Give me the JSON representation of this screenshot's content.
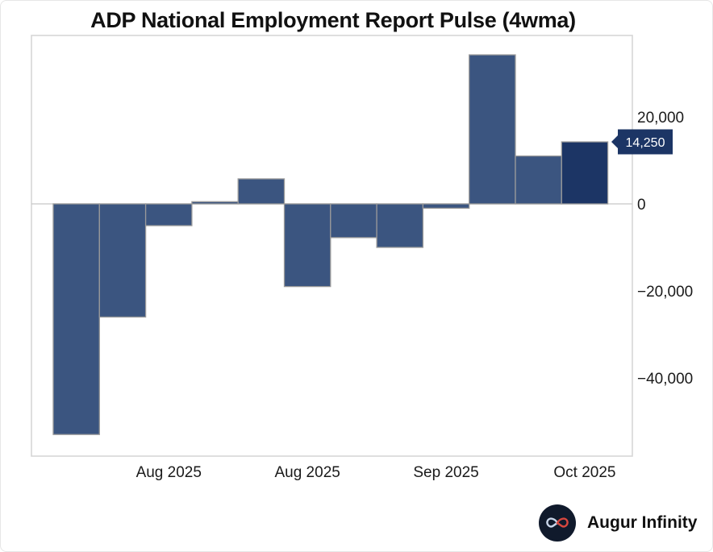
{
  "chart_data": {
    "type": "bar",
    "title": "ADP National Employment Report Pulse (4wma)",
    "xlabel": "",
    "ylabel": "",
    "ylim": [
      -58000,
      38500
    ],
    "values": [
      -53000,
      -26000,
      -5000,
      500,
      5750,
      -19000,
      -7750,
      -10000,
      -1000,
      34250,
      11000,
      14250
    ],
    "highlight_index": 11,
    "yticks": [
      20000,
      0,
      -20000,
      -40000
    ],
    "ytick_labels": [
      "20,000",
      "0",
      "−20,000",
      "−40,000"
    ],
    "xtick_labels": [
      "Aug 2025",
      "Aug 2025",
      "Sep 2025",
      "Oct 2025"
    ],
    "xtick_bar_positions": [
      2.5,
      5.5,
      8.5,
      11.5
    ],
    "callout": {
      "value": 14250,
      "label": "14,250"
    },
    "colors": {
      "bar": "#3b5580",
      "bar_highlight": "#1c3565",
      "bar_edge": "#9a9a9a",
      "callout_bg": "#1c3565",
      "zero_line": "#c8c8c8",
      "frame": "#d4d4d4"
    }
  },
  "brand": {
    "name": "Augur Infinity",
    "logo_icon": "infinity-icon"
  }
}
